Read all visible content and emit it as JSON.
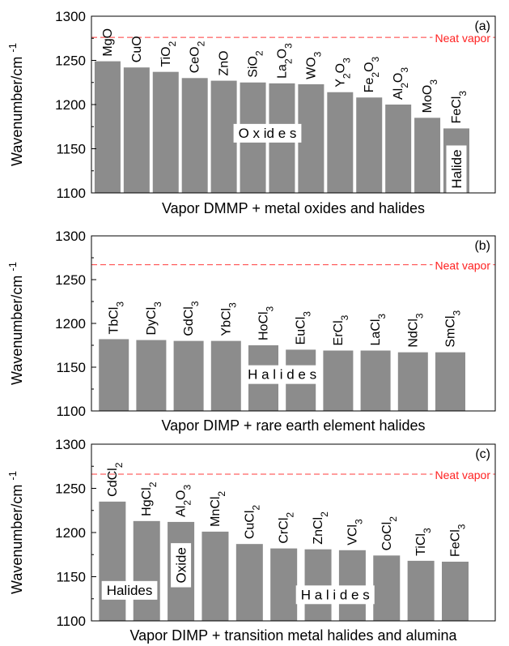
{
  "colors": {
    "bar": "#8c8c8c",
    "axis": "#000000",
    "neat_line": "#ff3b3b",
    "neat_text": "#ff2020",
    "background": "#ffffff"
  },
  "chart_data": [
    {
      "type": "bar",
      "panel_label": "(a)",
      "title": "",
      "xlabel": "Vapor DMMP + metal oxides and halides",
      "ylabel": "Wavenumber/cm",
      "ylabel_superscript": "-1",
      "ylim": [
        1100,
        1300
      ],
      "yticks": [
        1100,
        1150,
        1200,
        1250,
        1300
      ],
      "grid": false,
      "categories": [
        {
          "base": "MgO",
          "parts": [
            [
              "MgO",
              "n"
            ]
          ]
        },
        {
          "base": "CuO",
          "parts": [
            [
              "CuO",
              "n"
            ]
          ]
        },
        {
          "base": "TiO2",
          "parts": [
            [
              "TiO",
              "n"
            ],
            [
              "2",
              "s"
            ]
          ]
        },
        {
          "base": "CeO2",
          "parts": [
            [
              "CeO",
              "n"
            ],
            [
              "2",
              "s"
            ]
          ]
        },
        {
          "base": "ZnO",
          "parts": [
            [
              "ZnO",
              "n"
            ]
          ]
        },
        {
          "base": "SiO2",
          "parts": [
            [
              "SiO",
              "n"
            ],
            [
              "2",
              "s"
            ]
          ]
        },
        {
          "base": "La2O3",
          "parts": [
            [
              "La",
              "n"
            ],
            [
              "2",
              "s"
            ],
            [
              "O",
              "n"
            ],
            [
              "3",
              "s"
            ]
          ]
        },
        {
          "base": "WO3",
          "parts": [
            [
              "WO",
              "n"
            ],
            [
              "3",
              "s"
            ]
          ]
        },
        {
          "base": "Y2O3",
          "parts": [
            [
              "Y",
              "n"
            ],
            [
              "2",
              "s"
            ],
            [
              "O",
              "n"
            ],
            [
              "3",
              "s"
            ]
          ]
        },
        {
          "base": "Fe2O3",
          "parts": [
            [
              "Fe",
              "n"
            ],
            [
              "2",
              "s"
            ],
            [
              "O",
              "n"
            ],
            [
              "3",
              "s"
            ]
          ]
        },
        {
          "base": "Al2O3",
          "parts": [
            [
              "Al",
              "n"
            ],
            [
              "2",
              "s"
            ],
            [
              "O",
              "n"
            ],
            [
              "3",
              "s"
            ]
          ]
        },
        {
          "base": "MoO3",
          "parts": [
            [
              "MoO",
              "n"
            ],
            [
              "3",
              "s"
            ]
          ]
        },
        {
          "base": "FeCl3",
          "parts": [
            [
              "FeCl",
              "n"
            ],
            [
              "3",
              "s"
            ]
          ]
        }
      ],
      "values": [
        1249,
        1242,
        1237,
        1230,
        1227,
        1225,
        1224,
        1223,
        1214,
        1208,
        1200,
        1185,
        1173
      ],
      "reference": {
        "label": "Neat vapor",
        "value": 1276
      },
      "group_labels": [
        {
          "text": "O x id e s",
          "orientation": "horizontal",
          "from": 4,
          "to": 7,
          "y": 1168
        },
        {
          "text": "Halide",
          "orientation": "vertical",
          "from": 12,
          "to": 12,
          "y": 1127
        }
      ]
    },
    {
      "type": "bar",
      "panel_label": "(b)",
      "title": "",
      "xlabel": "Vapor DIMP + rare earth element halides",
      "ylabel": "Wavenumber/cm",
      "ylabel_superscript": "-1",
      "ylim": [
        1100,
        1300
      ],
      "yticks": [
        1100,
        1150,
        1200,
        1250,
        1300
      ],
      "grid": false,
      "categories": [
        {
          "base": "TbCl3",
          "parts": [
            [
              "TbCl",
              "n"
            ],
            [
              "3",
              "s"
            ]
          ]
        },
        {
          "base": "DyCl3",
          "parts": [
            [
              "DyCl",
              "n"
            ],
            [
              "3",
              "s"
            ]
          ]
        },
        {
          "base": "GdCl3",
          "parts": [
            [
              "GdCl",
              "n"
            ],
            [
              "3",
              "s"
            ]
          ]
        },
        {
          "base": "YbCl3",
          "parts": [
            [
              "YbCl",
              "n"
            ],
            [
              "3",
              "s"
            ]
          ]
        },
        {
          "base": "HoCl3",
          "parts": [
            [
              "HoCl",
              "n"
            ],
            [
              "3",
              "s"
            ]
          ]
        },
        {
          "base": "EuCl3",
          "parts": [
            [
              "EuCl",
              "n"
            ],
            [
              "3",
              "s"
            ]
          ]
        },
        {
          "base": "ErCl3",
          "parts": [
            [
              "ErCl",
              "n"
            ],
            [
              "3",
              "s"
            ]
          ]
        },
        {
          "base": "LaCl3",
          "parts": [
            [
              "LaCl",
              "n"
            ],
            [
              "3",
              "s"
            ]
          ]
        },
        {
          "base": "NdCl3",
          "parts": [
            [
              "NdCl",
              "n"
            ],
            [
              "3",
              "s"
            ]
          ]
        },
        {
          "base": "SmCl3",
          "parts": [
            [
              "SmCl",
              "n"
            ],
            [
              "3",
              "s"
            ]
          ]
        }
      ],
      "values": [
        1182,
        1181,
        1180,
        1180,
        1175,
        1170,
        1169,
        1169,
        1167,
        1167
      ],
      "reference": {
        "label": "Neat vapor",
        "value": 1267
      },
      "group_labels": [
        {
          "text": "H a l i d e s",
          "orientation": "horizontal",
          "from": 3,
          "to": 6,
          "y": 1142
        }
      ]
    },
    {
      "type": "bar",
      "panel_label": "(c)",
      "title": "",
      "xlabel": "Vapor DIMP + transition metal halides and alumina",
      "ylabel": "Wavenumber/cm",
      "ylabel_superscript": "-1",
      "ylim": [
        1100,
        1300
      ],
      "yticks": [
        1100,
        1150,
        1200,
        1250,
        1300
      ],
      "grid": false,
      "categories": [
        {
          "base": "CdCl2",
          "parts": [
            [
              "CdCl",
              "n"
            ],
            [
              "2",
              "s"
            ]
          ]
        },
        {
          "base": "HgCl2",
          "parts": [
            [
              "HgCl",
              "n"
            ],
            [
              "2",
              "s"
            ]
          ]
        },
        {
          "base": "Al2O3",
          "parts": [
            [
              "Al",
              "n"
            ],
            [
              "2",
              "s"
            ],
            [
              "O",
              "n"
            ],
            [
              "3",
              "s"
            ]
          ]
        },
        {
          "base": "MnCl2",
          "parts": [
            [
              "MnCl",
              "n"
            ],
            [
              "2",
              "s"
            ]
          ]
        },
        {
          "base": "CuCl2",
          "parts": [
            [
              "CuCl",
              "n"
            ],
            [
              "2",
              "s"
            ]
          ]
        },
        {
          "base": "CrCl2",
          "parts": [
            [
              "CrCl",
              "n"
            ],
            [
              "2",
              "s"
            ]
          ]
        },
        {
          "base": "ZnCl2",
          "parts": [
            [
              "ZnCl",
              "n"
            ],
            [
              "2",
              "s"
            ]
          ]
        },
        {
          "base": "VCl3",
          "parts": [
            [
              "VCl",
              "n"
            ],
            [
              "3",
              "s"
            ]
          ]
        },
        {
          "base": "CoCl2",
          "parts": [
            [
              "CoCl",
              "n"
            ],
            [
              "2",
              "s"
            ]
          ]
        },
        {
          "base": "TiCl3",
          "parts": [
            [
              "TiCl",
              "n"
            ],
            [
              "3",
              "s"
            ]
          ]
        },
        {
          "base": "FeCl3",
          "parts": [
            [
              "FeCl",
              "n"
            ],
            [
              "3",
              "s"
            ]
          ]
        }
      ],
      "values": [
        1235,
        1213,
        1212,
        1201,
        1187,
        1182,
        1181,
        1180,
        1174,
        1168,
        1167
      ],
      "reference": {
        "label": "Neat vapor",
        "value": 1266
      },
      "group_labels": [
        {
          "text": "Halides",
          "orientation": "horizontal",
          "from": 0,
          "to": 1,
          "y": 1135
        },
        {
          "text": "Oxide",
          "orientation": "vertical",
          "from": 2,
          "to": 2,
          "y": 1163
        },
        {
          "text": "H a l i d e s",
          "orientation": "horizontal",
          "from": 5,
          "to": 8,
          "y": 1130
        }
      ]
    }
  ]
}
